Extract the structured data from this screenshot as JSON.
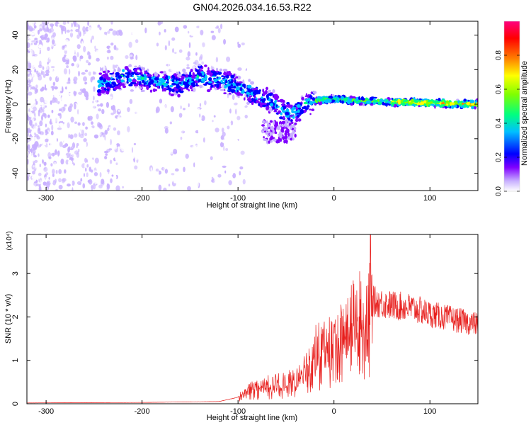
{
  "title": "GN04.2026.034.16.53.R22",
  "chart_data": [
    {
      "type": "heatmap",
      "name": "spectrogram",
      "xlabel": "Height of straight line (km)",
      "ylabel": "Frequency (Hz)",
      "xlim": [
        -320,
        150
      ],
      "ylim": [
        -50,
        48
      ],
      "xticks": [
        -300,
        -200,
        -100,
        0,
        100
      ],
      "yticks": [
        -40,
        -20,
        0,
        20,
        40
      ],
      "ridge": {
        "x": [
          -240,
          -220,
          -200,
          -180,
          -160,
          -140,
          -120,
          -100,
          -80,
          -60,
          -50,
          -40,
          -30,
          -20,
          0,
          20,
          50,
          80,
          110,
          150
        ],
        "freq": [
          12,
          16,
          15,
          12,
          12,
          16,
          14,
          10,
          5,
          0,
          -6,
          -5,
          0,
          2,
          3,
          2,
          1.5,
          1,
          0.5,
          0
        ]
      },
      "colorbar": {
        "label": "Normalized spectral amplitude",
        "range": [
          0.0,
          1.0
        ],
        "ticks": [
          "0.0",
          "0.2",
          "0.4",
          "0.6",
          "0.8"
        ],
        "tick_values": [
          0.0,
          0.2,
          0.4,
          0.6,
          0.8
        ],
        "colors": [
          "#ffffff",
          "#c8b0ff",
          "#8000ff",
          "#0000ff",
          "#00c0ff",
          "#00ff80",
          "#80ff00",
          "#ffff00",
          "#ff8000",
          "#ff0000",
          "#ff0080"
        ]
      }
    },
    {
      "type": "line",
      "name": "snr",
      "xlabel": "Height of straight line (km)",
      "ylabel": "SNR (10 * v/v)",
      "scale_label": "(x10⁴)",
      "xlim": [
        -320,
        150
      ],
      "ylim": [
        0,
        3.9
      ],
      "xticks": [
        -300,
        -200,
        -100,
        0,
        100
      ],
      "yticks": [
        0,
        1,
        2,
        3
      ],
      "color": "#ff0000",
      "envelope": {
        "x": [
          -320,
          -200,
          -120,
          -100,
          -90,
          -80,
          -60,
          -50,
          -40,
          -30,
          -20,
          -10,
          0,
          10,
          20,
          30,
          40,
          50,
          60,
          80,
          100,
          120,
          150
        ],
        "y": [
          0.02,
          0.03,
          0.05,
          0.15,
          0.35,
          0.45,
          0.5,
          0.55,
          0.6,
          0.9,
          1.3,
          1.5,
          1.5,
          1.8,
          2.1,
          2.3,
          2.4,
          2.35,
          2.3,
          2.25,
          2.1,
          2.0,
          1.85
        ]
      },
      "peak": {
        "x": 38,
        "y": 3.9
      }
    }
  ]
}
